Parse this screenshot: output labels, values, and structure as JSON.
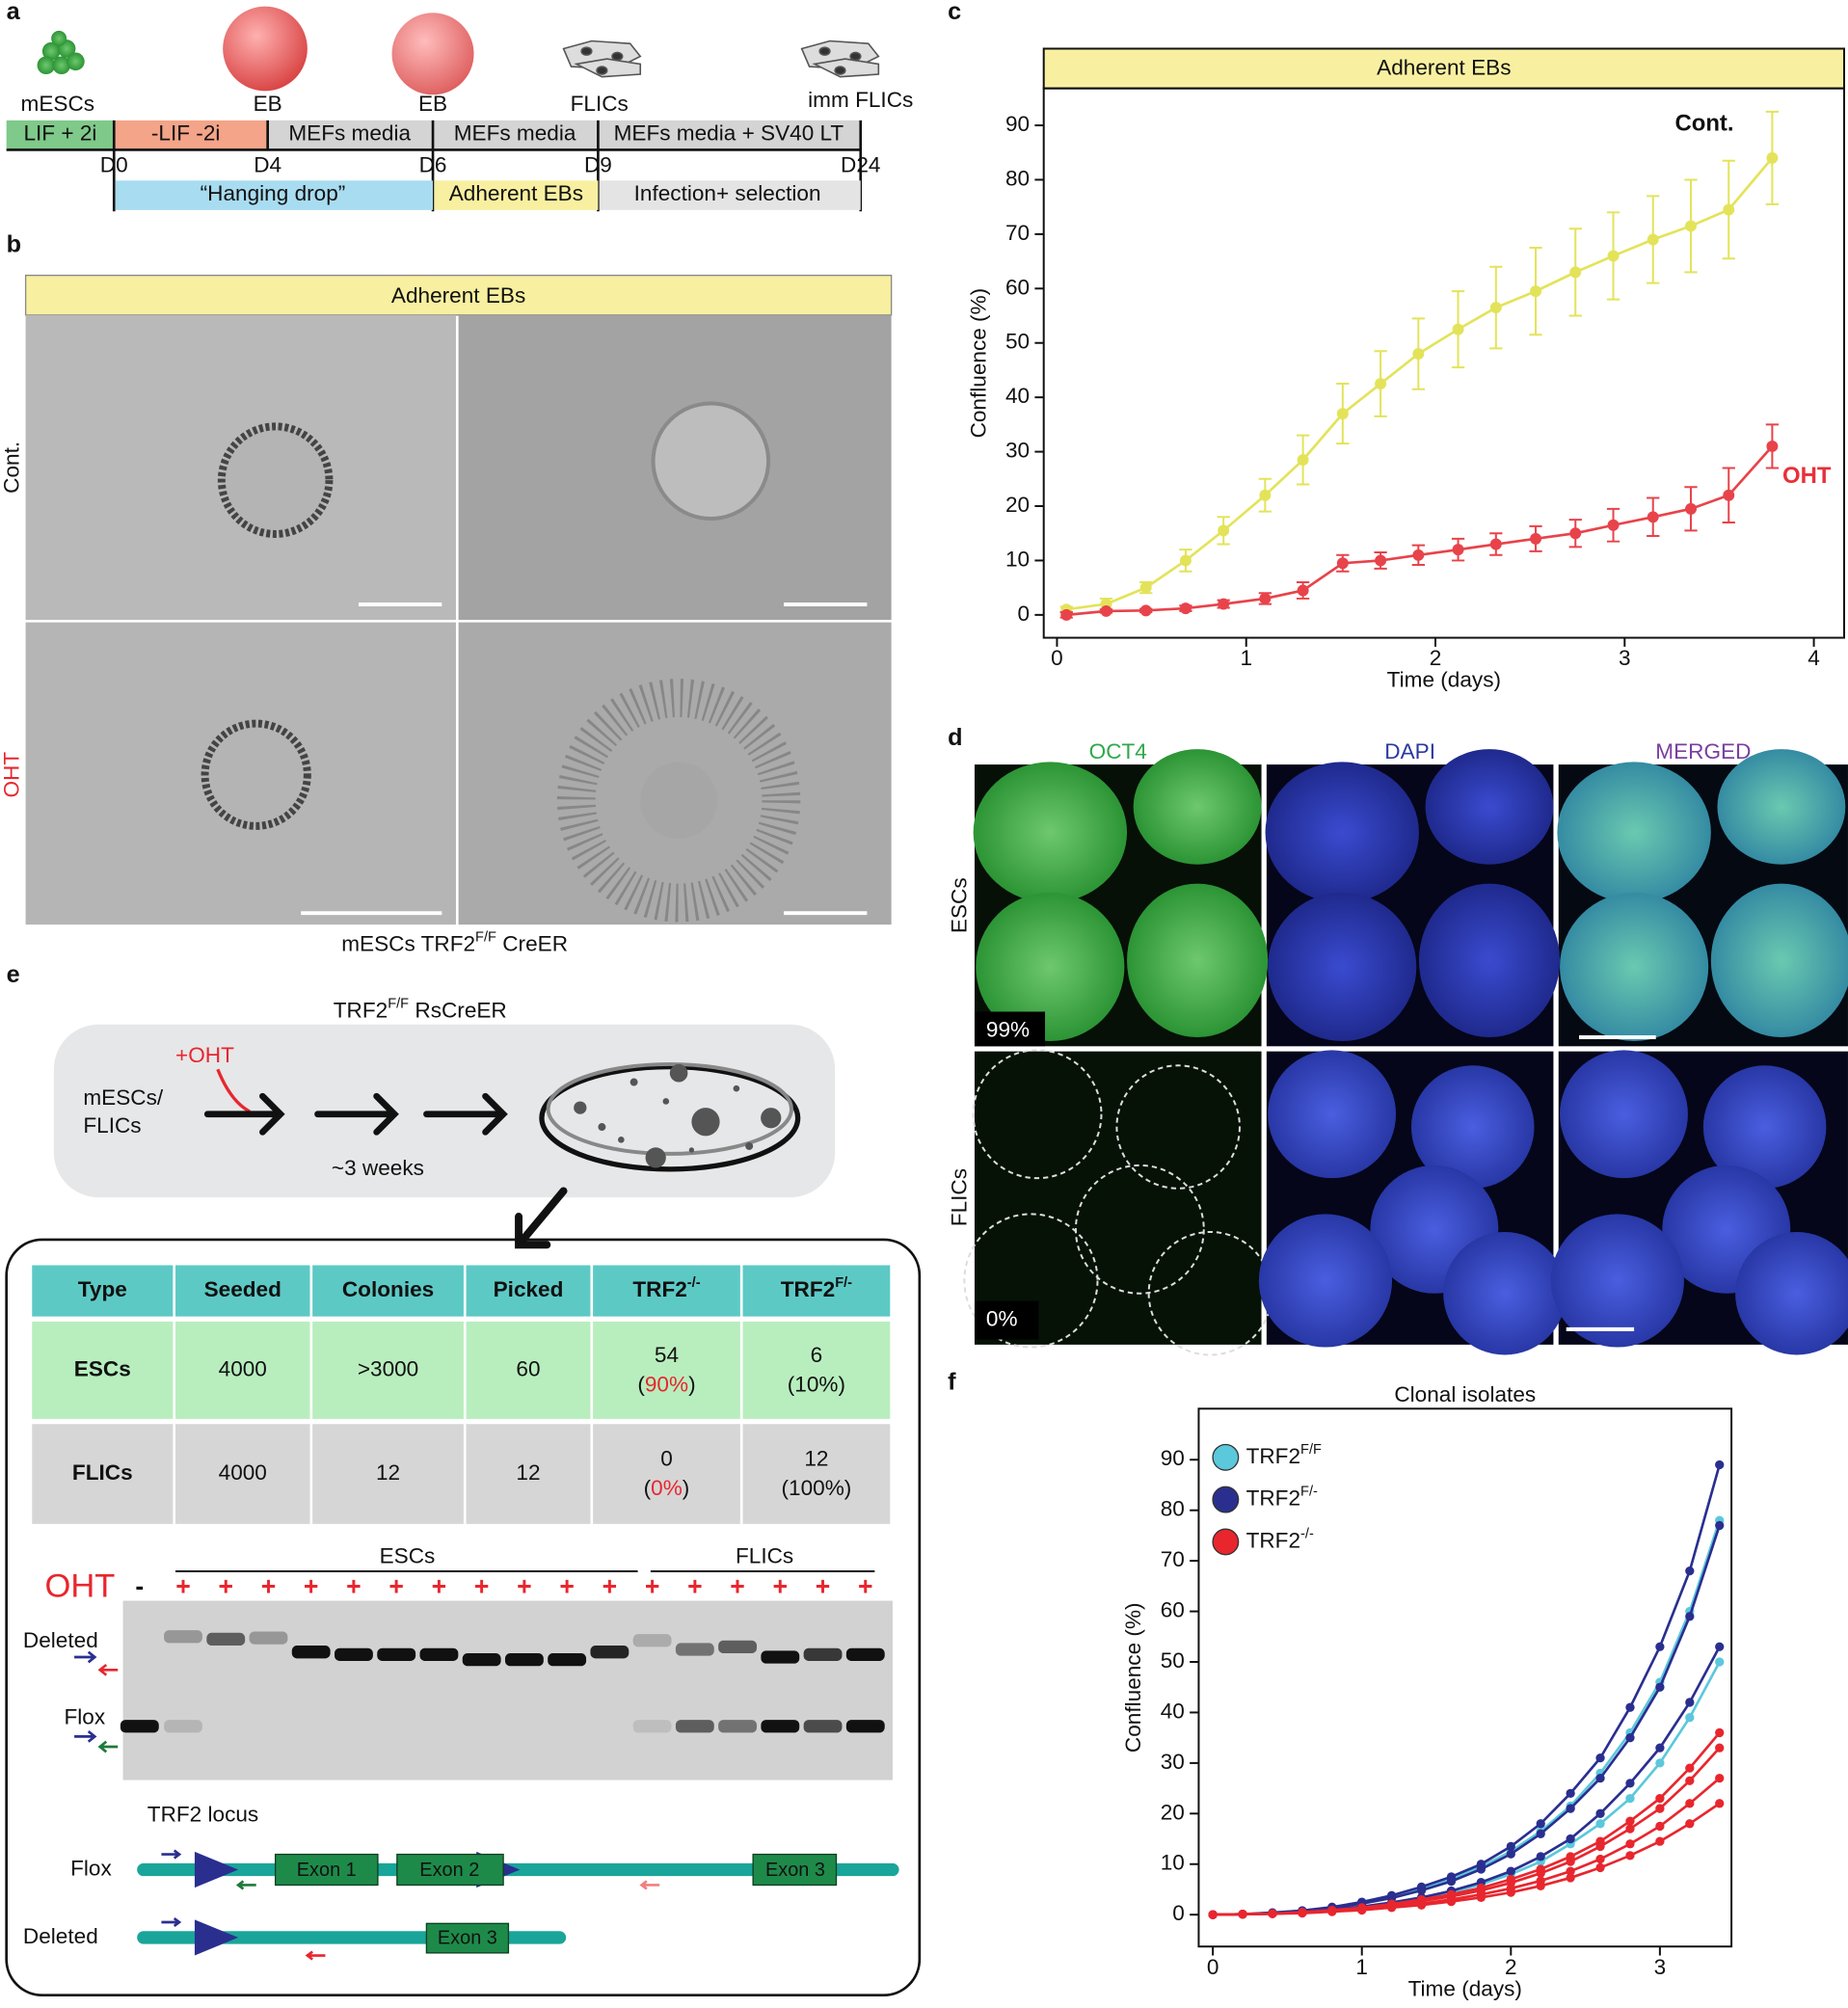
{
  "panel_labels": [
    "a",
    "b",
    "c",
    "d",
    "e",
    "f"
  ],
  "timeline": {
    "stages": [
      "mESCs",
      "EB",
      "EB",
      "FLICs",
      "imm FLICs"
    ],
    "media": [
      "LIF + 2i",
      "-LIF -2i",
      "MEFs media",
      "MEFs media",
      "MEFs media + SV40 LT"
    ],
    "days": [
      "D0",
      "D4",
      "D6",
      "D9",
      "D24"
    ],
    "phases": [
      "“Hanging drop”",
      "Adherent EBs",
      "Infection+ selection"
    ]
  },
  "panel_b": {
    "header": "Adherent EBs",
    "rows": [
      "Cont.",
      "OHT"
    ],
    "caption": {
      "text": "mESCs TRF2",
      "sup": "F/F",
      "tail": " CreER"
    }
  },
  "panel_d": {
    "columns": [
      "OCT4",
      "DAPI",
      "MERGED"
    ],
    "rows": [
      "ESCs",
      "FLICs"
    ],
    "percents": [
      "99%",
      "0%"
    ]
  },
  "panel_e": {
    "strain": {
      "text": "TRF2",
      "sup": "F/F",
      "tail": " RsCreER"
    },
    "treatment": "+OHT",
    "start": [
      "mESCs/",
      "FLICs"
    ],
    "duration": "~3 weeks",
    "table": {
      "header": [
        {
          "text": "Type"
        },
        {
          "text": "Seeded"
        },
        {
          "text": "Colonies"
        },
        {
          "text": "Picked"
        },
        {
          "text": "TRF2",
          "sup": "-/-"
        },
        {
          "text": "TRF2",
          "sup": "F/-"
        }
      ],
      "rows": [
        [
          {
            "top": "ESCs"
          },
          {
            "top": "4000"
          },
          {
            "top": ">3000"
          },
          {
            "top": "60"
          },
          {
            "top": "54",
            "bottom": [
              "(",
              "90%",
              ")"
            ],
            "red": true
          },
          {
            "top": "6",
            "bottom": [
              "(",
              "10%",
              ")"
            ]
          }
        ],
        [
          {
            "top": "FLICs"
          },
          {
            "top": "4000"
          },
          {
            "top": "12"
          },
          {
            "top": "12"
          },
          {
            "top": "0",
            "bottom": [
              "(",
              "0%",
              ")"
            ],
            "red": true
          },
          {
            "top": "12",
            "bottom": [
              "(",
              "100%",
              ")"
            ]
          }
        ]
      ]
    },
    "gel": {
      "treatment": "OHT",
      "lanes": [
        "-",
        "+",
        "+",
        "+",
        "+",
        "+",
        "+",
        "+",
        "+",
        "+",
        "+",
        "+",
        "+",
        "+",
        "+",
        "+",
        "+",
        "+"
      ],
      "groups": [
        "ESCs",
        "FLICs"
      ],
      "bands": [
        "Deleted",
        "Flox"
      ]
    },
    "locus": {
      "title": "TRF2 locus",
      "rows": [
        "Flox",
        "Deleted"
      ],
      "exons": [
        "Exon 1",
        "Exon 2",
        "Exon 3",
        "Exon 3"
      ]
    }
  },
  "chart_data": [
    {
      "type": "line",
      "title": "Adherent EBs",
      "title_background": "#f8f0a0",
      "xlabel": "Time (days)",
      "ylabel": "Confluence (%)",
      "x": [
        0.05,
        0.26,
        0.47,
        0.68,
        0.88,
        1.1,
        1.3,
        1.51,
        1.71,
        1.91,
        2.12,
        2.32,
        2.53,
        2.74,
        2.94,
        3.15,
        3.35,
        3.55,
        3.78
      ],
      "xlim": [
        -0.07,
        4.16
      ],
      "ylim": [
        -4.2,
        96.8
      ],
      "xticks": [
        0,
        1,
        2,
        3,
        4
      ],
      "yticks": [
        0,
        10,
        20,
        30,
        40,
        50,
        60,
        70,
        80,
        90
      ],
      "series": [
        {
          "name": "Cont.",
          "color": "#e3e35a",
          "label_color": "#111111",
          "values": [
            1,
            2,
            5,
            10,
            15.5,
            22,
            28.5,
            37,
            42.5,
            48,
            52.5,
            56.5,
            59.5,
            63,
            66,
            69,
            71.5,
            74.5,
            84
          ],
          "errors": [
            0.5,
            1,
            1,
            2,
            2.5,
            3,
            4.5,
            5.5,
            6,
            6.5,
            7,
            7.5,
            8,
            8,
            8,
            8,
            8.5,
            9,
            8.5
          ]
        },
        {
          "name": "OHT",
          "color": "#e8434a",
          "label_color": "#e8303a",
          "values": [
            0,
            0.7,
            0.8,
            1.2,
            2,
            3,
            4.5,
            9.5,
            10,
            11,
            12,
            13,
            14,
            15,
            16.5,
            18,
            19.5,
            22,
            31
          ],
          "errors": [
            0.5,
            0.3,
            0.3,
            0.5,
            0.7,
            1,
            1.5,
            1.5,
            1.5,
            1.8,
            2,
            2,
            2.3,
            2.5,
            3,
            3.5,
            4,
            5,
            4
          ]
        }
      ]
    },
    {
      "type": "line",
      "title": "Clonal isolates",
      "xlabel": "Time (days)",
      "ylabel": "Confluence (%)",
      "x": [
        0,
        0.2,
        0.4,
        0.6,
        0.8,
        1,
        1.2,
        1.4,
        1.6,
        1.8,
        2,
        2.2,
        2.4,
        2.6,
        2.8,
        3,
        3.2,
        3.4
      ],
      "xlim": [
        -0.095,
        3.48
      ],
      "ylim": [
        -6.3,
        100.1
      ],
      "xticks": [
        0,
        1,
        2,
        3
      ],
      "yticks": [
        0,
        10,
        20,
        30,
        40,
        50,
        60,
        70,
        80,
        90
      ],
      "series": [
        {
          "name": "TRF2",
          "sup": "F/F",
          "color": "#5bc8dc",
          "values": [
            [
              0,
              0.1,
              0.4,
              0.8,
              1.4,
              2.3,
              3.5,
              5,
              7,
              9.5,
              12.5,
              16.5,
              21.5,
              28,
              36,
              46,
              60,
              78
            ],
            [
              0,
              0.1,
              0.2,
              0.4,
              0.8,
              1.4,
              2.2,
              3.2,
              4.4,
              6,
              8,
              10.5,
              14,
              18,
              23,
              30,
              39,
              50
            ]
          ]
        },
        {
          "name": "TRF2",
          "sup": "F/-",
          "color": "#2a2f8f",
          "values": [
            [
              0,
              0.1,
              0.4,
              0.8,
              1.5,
              2.5,
              3.8,
              5.5,
              7.5,
              10,
              13.5,
              18,
              24,
              31,
              41,
              53,
              68,
              89
            ],
            [
              0,
              0.1,
              0.3,
              0.7,
              1.3,
              2.2,
              3.3,
              4.8,
              6.6,
              9,
              12,
              16,
              21,
              27,
              35,
              45,
              59,
              77
            ],
            [
              0,
              0.1,
              0.2,
              0.5,
              1,
              1.6,
              2.4,
              3.4,
              4.7,
              6.4,
              8.6,
              11.5,
              15,
              20,
              26,
              33,
              42,
              53
            ]
          ]
        },
        {
          "name": "TRF2",
          "sup": "-/-",
          "color": "#e8262e",
          "values": [
            [
              0,
              0.1,
              0.2,
              0.5,
              0.9,
              1.4,
              2.1,
              3,
              4,
              5.3,
              7,
              9,
              11.5,
              14.5,
              18.5,
              23,
              29,
              36
            ],
            [
              0,
              0.1,
              0.2,
              0.4,
              0.8,
              1.3,
              1.9,
              2.7,
              3.6,
              4.8,
              6.3,
              8.2,
              10.5,
              13.5,
              17,
              21,
              26.5,
              33
            ],
            [
              0,
              0.1,
              0.2,
              0.4,
              0.7,
              1.1,
              1.6,
              2.2,
              3,
              4,
              5.2,
              6.7,
              8.6,
              11,
              14,
              17.5,
              22,
              27
            ],
            [
              0,
              0.1,
              0.2,
              0.3,
              0.6,
              0.9,
              1.4,
              1.9,
              2.6,
              3.4,
              4.4,
              5.7,
              7.3,
              9.3,
              11.7,
              14.5,
              18,
              22
            ]
          ]
        }
      ]
    }
  ]
}
